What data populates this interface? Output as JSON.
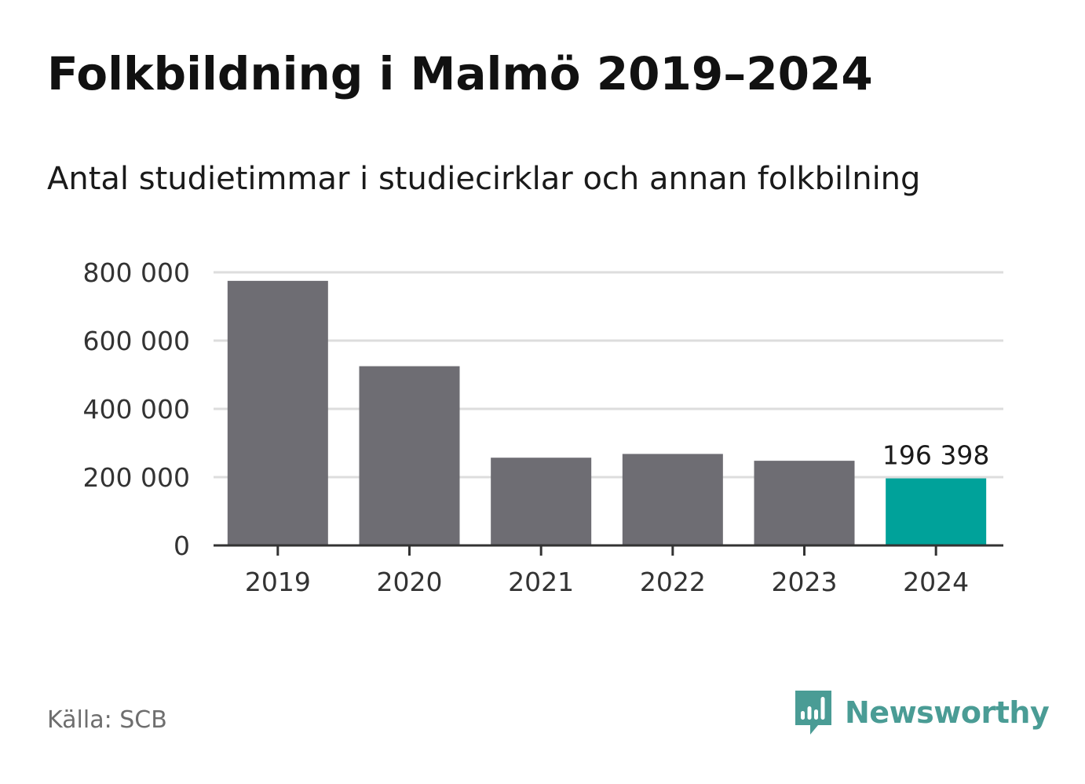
{
  "title": "Folkbildning i Malmö 2019–2024",
  "subtitle": "Antal studietimmar i studiecirklar och annan folkbilning",
  "source": "Källa: SCB",
  "brand": {
    "name": "Newsworthy",
    "icon": "bar-chart-speech-bubble-icon",
    "color": "#4a9c95"
  },
  "colors": {
    "bar": "#6e6d73",
    "highlight": "#00a29a",
    "grid": "#dddddd",
    "axis": "#333333"
  },
  "chart_data": {
    "type": "bar",
    "title": "Folkbildning i Malmö 2019–2024",
    "subtitle": "Antal studietimmar i studiecirklar och annan folkbilning",
    "categories": [
      "2019",
      "2020",
      "2021",
      "2022",
      "2023",
      "2024"
    ],
    "values": [
      775000,
      525000,
      257000,
      268000,
      248000,
      196398
    ],
    "highlight_index": 5,
    "data_labels": [
      {
        "index": 5,
        "text": "196 398"
      }
    ],
    "ylim": [
      0,
      800000
    ],
    "yticks": [
      0,
      200000,
      400000,
      600000,
      800000
    ],
    "ytick_labels": [
      "0",
      "200 000",
      "400 000",
      "600 000",
      "800 000"
    ],
    "xlabel": "",
    "ylabel": "",
    "grid": true,
    "legend": "none"
  }
}
